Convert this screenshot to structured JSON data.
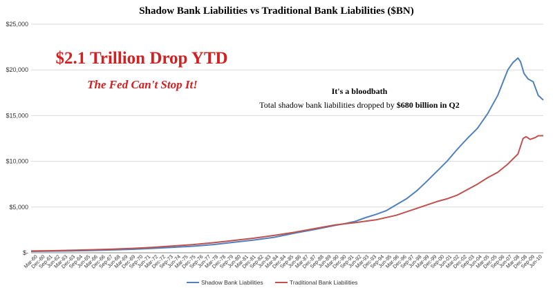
{
  "chart_data": {
    "type": "line",
    "title": "Shadow Bank Liabilities vs Traditional Bank Liabilities ($BN)",
    "xlabel": "",
    "ylabel": "",
    "ylim": [
      0,
      25000
    ],
    "grid": true,
    "legend_position": "bottom-center",
    "y_ticks": [
      {
        "value": 0,
        "label": "$-"
      },
      {
        "value": 5000,
        "label": "$5,000"
      },
      {
        "value": 10000,
        "label": "$10,000"
      },
      {
        "value": 15000,
        "label": "$15,000"
      },
      {
        "value": 20000,
        "label": "$20,000"
      },
      {
        "value": 25000,
        "label": "$25,000"
      }
    ],
    "x_tick_labels": [
      "Mar-60",
      "Dec-60",
      "Sep-61",
      "Jun-62",
      "Mar-63",
      "Dec-63",
      "Sep-64",
      "Jun-65",
      "Mar-66",
      "Dec-66",
      "Sep-67",
      "Jun-68",
      "Mar-69",
      "Dec-69",
      "Sep-70",
      "Jun-71",
      "Mar-72",
      "Dec-72",
      "Sep-73",
      "Jun-74",
      "Mar-75",
      "Dec-75",
      "Sep-76",
      "Jun-77",
      "Mar-78",
      "Dec-78",
      "Sep-79",
      "Jun-80",
      "Mar-81",
      "Dec-81",
      "Sep-82",
      "Jun-83",
      "Mar-84",
      "Dec-84",
      "Sep-85",
      "Jun-86",
      "Mar-87",
      "Dec-87",
      "Sep-88",
      "Jun-89",
      "Mar-90",
      "Dec-90",
      "Sep-91",
      "Jun-92",
      "Mar-93",
      "Dec-93",
      "Sep-94",
      "Jun-95",
      "Mar-96",
      "Dec-96",
      "Sep-97",
      "Jun-98",
      "Mar-99",
      "Dec-99",
      "Sep-00",
      "Jun-01",
      "Mar-02",
      "Dec-02",
      "Sep-03",
      "Jun-04",
      "Mar-05",
      "Dec-05",
      "Sep-06",
      "Jun-07",
      "Mar-08",
      "Dec-08",
      "Sep-09",
      "Jun-10"
    ],
    "x_start_year": 1960.0,
    "x_end_year": 2010.5,
    "series": [
      {
        "name": "Shadow Bank Liabilities",
        "color": "#4f81bd",
        "points": [
          [
            1960,
            150
          ],
          [
            1962,
            180
          ],
          [
            1964,
            210
          ],
          [
            1966,
            260
          ],
          [
            1968,
            310
          ],
          [
            1970,
            380
          ],
          [
            1972,
            480
          ],
          [
            1974,
            600
          ],
          [
            1976,
            720
          ],
          [
            1978,
            900
          ],
          [
            1980,
            1150
          ],
          [
            1982,
            1400
          ],
          [
            1984,
            1700
          ],
          [
            1986,
            2150
          ],
          [
            1988,
            2550
          ],
          [
            1990,
            3000
          ],
          [
            1991,
            3200
          ],
          [
            1992,
            3450
          ],
          [
            1993,
            3850
          ],
          [
            1994,
            4200
          ],
          [
            1995,
            4600
          ],
          [
            1996,
            5250
          ],
          [
            1997,
            5900
          ],
          [
            1998,
            6750
          ],
          [
            1999,
            7800
          ],
          [
            2000,
            8900
          ],
          [
            2001,
            10000
          ],
          [
            2002,
            11300
          ],
          [
            2003,
            12500
          ],
          [
            2004,
            13600
          ],
          [
            2005,
            15200
          ],
          [
            2006,
            17200
          ],
          [
            2007,
            20000
          ],
          [
            2007.5,
            20800
          ],
          [
            2008,
            21300
          ],
          [
            2008.25,
            20900
          ],
          [
            2008.6,
            19600
          ],
          [
            2009,
            19000
          ],
          [
            2009.5,
            18700
          ],
          [
            2010,
            17200
          ],
          [
            2010.5,
            16700
          ]
        ]
      },
      {
        "name": "Traditional Bank Liabilities",
        "color": "#c0504d",
        "points": [
          [
            1960,
            200
          ],
          [
            1962,
            230
          ],
          [
            1964,
            270
          ],
          [
            1966,
            330
          ],
          [
            1968,
            400
          ],
          [
            1970,
            480
          ],
          [
            1972,
            600
          ],
          [
            1974,
            750
          ],
          [
            1976,
            900
          ],
          [
            1978,
            1100
          ],
          [
            1980,
            1350
          ],
          [
            1982,
            1600
          ],
          [
            1984,
            1900
          ],
          [
            1986,
            2250
          ],
          [
            1988,
            2650
          ],
          [
            1990,
            3050
          ],
          [
            1992,
            3300
          ],
          [
            1994,
            3600
          ],
          [
            1996,
            4100
          ],
          [
            1998,
            4850
          ],
          [
            2000,
            5600
          ],
          [
            2001,
            5900
          ],
          [
            2002,
            6300
          ],
          [
            2003,
            6900
          ],
          [
            2004,
            7500
          ],
          [
            2005,
            8200
          ],
          [
            2006,
            8800
          ],
          [
            2007,
            9700
          ],
          [
            2008,
            10800
          ],
          [
            2008.5,
            12500
          ],
          [
            2008.8,
            12700
          ],
          [
            2009.2,
            12400
          ],
          [
            2009.7,
            12600
          ],
          [
            2010,
            12800
          ],
          [
            2010.5,
            12800
          ]
        ]
      }
    ],
    "annotations": {
      "headline": "$2.1 Trillion Drop YTD",
      "subheadline": "The Fed Can't Stop It!",
      "note_title": "It's a bloodbath",
      "note_body_prefix": "Total shadow bank liabilities dropped by ",
      "note_body_bold": "$680 billion in Q2"
    }
  }
}
